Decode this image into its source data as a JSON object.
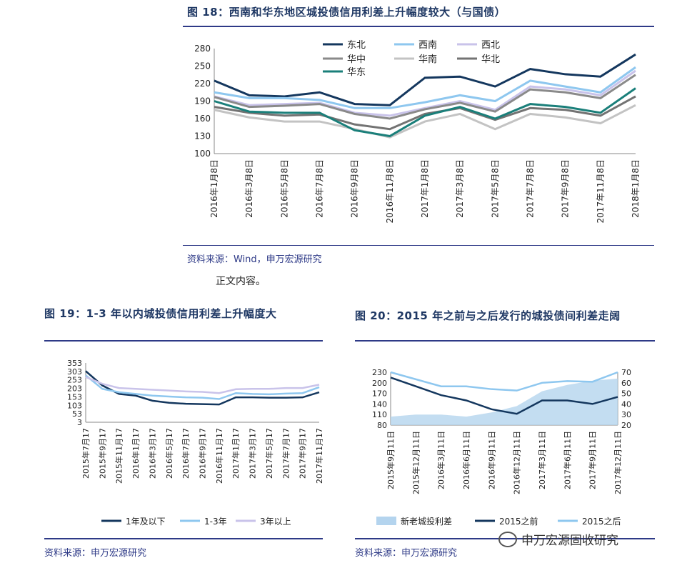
{
  "fig18": {
    "title": "图 18：西南和华东地区城投债信用利差上升幅度较大（与国债）",
    "source": "资料来源：Wind，申万宏源研究",
    "chart_data": {
      "type": "line",
      "categories": [
        "2016年1月8日",
        "2016年3月8日",
        "2016年5月8日",
        "2016年7月8日",
        "2016年9月8日",
        "2016年11月8日",
        "2017年1月8日",
        "2017年3月8日",
        "2017年5月8日",
        "2017年7月8日",
        "2017年9月8日",
        "2017年11月8日",
        "2018年1月8日"
      ],
      "ylim": [
        100,
        280
      ],
      "yticks": [
        "280",
        "250",
        "220",
        "190",
        "160",
        "130",
        "100"
      ],
      "grid": false,
      "legend_position": "top",
      "series": [
        {
          "name": "东北",
          "color": "#14375e",
          "values": [
            225,
            200,
            198,
            205,
            185,
            183,
            230,
            232,
            215,
            245,
            236,
            232,
            270
          ]
        },
        {
          "name": "西南",
          "color": "#8ec7ef",
          "values": [
            205,
            195,
            195,
            192,
            178,
            178,
            188,
            200,
            190,
            225,
            215,
            205,
            248
          ]
        },
        {
          "name": "西北",
          "color": "#c9c3ea",
          "values": [
            198,
            183,
            185,
            187,
            170,
            165,
            178,
            190,
            175,
            215,
            210,
            200,
            242
          ]
        },
        {
          "name": "华中",
          "color": "#8a8a8a",
          "values": [
            197,
            180,
            182,
            185,
            168,
            160,
            176,
            187,
            172,
            210,
            205,
            195,
            235
          ]
        },
        {
          "name": "华南",
          "color": "#c3c3c3",
          "values": [
            175,
            162,
            155,
            155,
            142,
            128,
            155,
            168,
            142,
            168,
            162,
            152,
            183
          ]
        },
        {
          "name": "华北",
          "color": "#737373",
          "values": [
            180,
            170,
            165,
            167,
            150,
            142,
            168,
            178,
            158,
            178,
            175,
            165,
            198
          ]
        },
        {
          "name": "华东",
          "color": "#1a7f7a",
          "values": [
            190,
            172,
            170,
            170,
            140,
            130,
            165,
            180,
            160,
            185,
            180,
            170,
            212
          ]
        }
      ]
    }
  },
  "body_text": "正文内容。",
  "fig19": {
    "title": "图 19：1-3 年以内城投债信用利差上升幅度大",
    "source": "资料来源：申万宏源研究",
    "chart_data": {
      "type": "line",
      "categories": [
        "2015年7月17",
        "2015年9月17",
        "2015年11月17",
        "2016年1月17",
        "2016年3月17",
        "2016年5月17",
        "2016年7月17",
        "2016年9月17",
        "2016年11月17",
        "2017年1月17",
        "2017年3月17",
        "2017年5月17",
        "2017年7月17",
        "2017年9月17",
        "2017年11月17"
      ],
      "ylim": [
        3,
        353
      ],
      "yticks": [
        "353",
        "303",
        "253",
        "203",
        "153",
        "103",
        "53",
        "3"
      ],
      "legend_position": "bottom",
      "series": [
        {
          "name": "1年及以下",
          "color": "#14375e",
          "values": [
            305,
            220,
            170,
            160,
            130,
            118,
            112,
            110,
            108,
            150,
            150,
            148,
            148,
            150,
            180
          ]
        },
        {
          "name": "1-3年",
          "color": "#8ec7ef",
          "values": [
            280,
            200,
            180,
            170,
            160,
            155,
            150,
            148,
            140,
            175,
            170,
            168,
            172,
            175,
            210
          ]
        },
        {
          "name": "3年以上",
          "color": "#c9c3ea",
          "values": [
            270,
            230,
            205,
            200,
            195,
            190,
            185,
            182,
            175,
            198,
            200,
            200,
            205,
            205,
            225
          ]
        }
      ]
    }
  },
  "fig20": {
    "title": "图 20：2015 年之前与之后发行的城投债间利差走阔",
    "source": "资料来源：申万宏源研究",
    "watermark": "申万宏源固收研究",
    "chart_data": {
      "type": "line",
      "categories": [
        "2015年9月11日",
        "2015年12月11日",
        "2016年3月11日",
        "2016年6月11日",
        "2016年9月11日",
        "2016年12月11日",
        "2017年3月11日",
        "2017年6月11日",
        "2017年9月11日",
        "2017年12月11日"
      ],
      "ylim": [
        80,
        230
      ],
      "yticks_left": [
        "230",
        "200",
        "170",
        "140",
        "110",
        "80"
      ],
      "ylim_right": [
        20,
        70
      ],
      "yticks_right": [
        "70",
        "60",
        "50",
        "40",
        "30",
        "20"
      ],
      "legend_position": "bottom",
      "series": [
        {
          "name": "新老城投利差",
          "color": "#b4d4ee",
          "axis": "right",
          "values": [
            28,
            30,
            30,
            28,
            32,
            38,
            52,
            58,
            62,
            64
          ]
        },
        {
          "name": "2015之前",
          "color": "#14375e",
          "axis": "left",
          "values": [
            215,
            190,
            165,
            150,
            125,
            112,
            150,
            150,
            140,
            160
          ]
        },
        {
          "name": "2015之后",
          "color": "#8ec7ef",
          "axis": "left",
          "values": [
            230,
            210,
            190,
            190,
            182,
            178,
            200,
            205,
            203,
            230
          ]
        }
      ]
    }
  }
}
